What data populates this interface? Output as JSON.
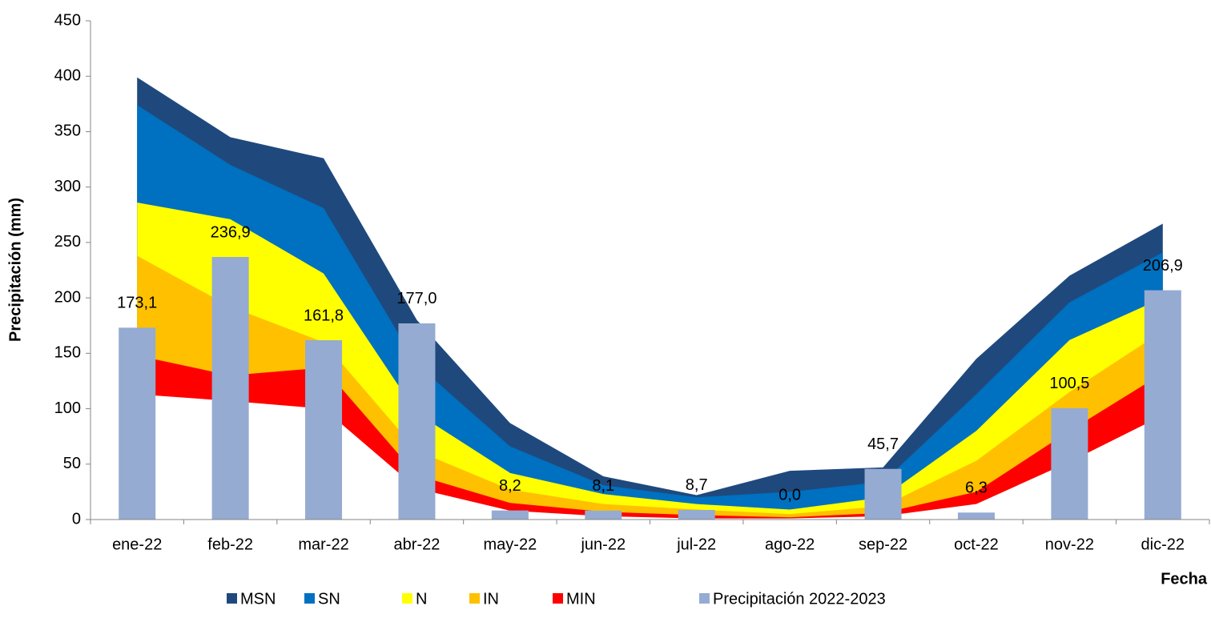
{
  "chart_data": {
    "type": "area",
    "y_label": "Precipitación (mm)",
    "x_label": "Fecha",
    "categories": [
      "ene-22",
      "feb-22",
      "mar-22",
      "abr-22",
      "may-22",
      "jun-22",
      "jul-22",
      "ago-22",
      "sep-22",
      "oct-22",
      "nov-22",
      "dic-22"
    ],
    "ylim": [
      0,
      450
    ],
    "yticks": [
      0,
      50,
      100,
      150,
      200,
      250,
      300,
      350,
      400,
      450
    ],
    "grid": false,
    "series": [
      {
        "name": "MSN",
        "type": "area",
        "color": "#1f497d",
        "values": [
          399,
          345,
          326,
          180,
          87,
          39,
          22,
          44,
          47,
          145,
          220,
          267
        ]
      },
      {
        "name": "SN",
        "type": "area",
        "color": "#0070c0",
        "values": [
          374,
          320,
          281,
          140,
          66,
          31,
          20,
          25,
          34,
          113,
          196,
          241
        ]
      },
      {
        "name": "N",
        "type": "area",
        "color": "#ffff00",
        "values": [
          286,
          271,
          222,
          96,
          42,
          23,
          14,
          9,
          20,
          80,
          162,
          200
        ]
      },
      {
        "name": "IN",
        "type": "area",
        "color": "#ffc000",
        "values": [
          238,
          192,
          160,
          62,
          27,
          14,
          9,
          5,
          12,
          53,
          115,
          170
        ]
      },
      {
        "name": "MIN",
        "type": "area",
        "color": "#ff0000",
        "values": [
          148,
          130,
          137,
          40,
          15,
          7,
          4,
          2,
          6,
          25,
          80,
          132
        ]
      },
      {
        "name": null,
        "type": "area",
        "color": "#ffffff",
        "values": [
          113,
          107,
          100,
          28,
          8,
          3,
          1,
          1,
          3,
          14,
          52,
          94
        ]
      },
      {
        "name": "Precipitación 2022-2023",
        "type": "bar",
        "color": "#95abd1",
        "values": [
          173.1,
          236.9,
          161.8,
          177.0,
          8.2,
          8.1,
          8.7,
          0.0,
          45.7,
          6.3,
          100.5,
          206.9
        ],
        "value_labels": [
          "173,1",
          "236,9",
          "161,8",
          "177,0",
          "8,2",
          "8,1",
          "8,7",
          "0,0",
          "45,7",
          "6,3",
          "100,5",
          "206,9"
        ]
      }
    ]
  }
}
